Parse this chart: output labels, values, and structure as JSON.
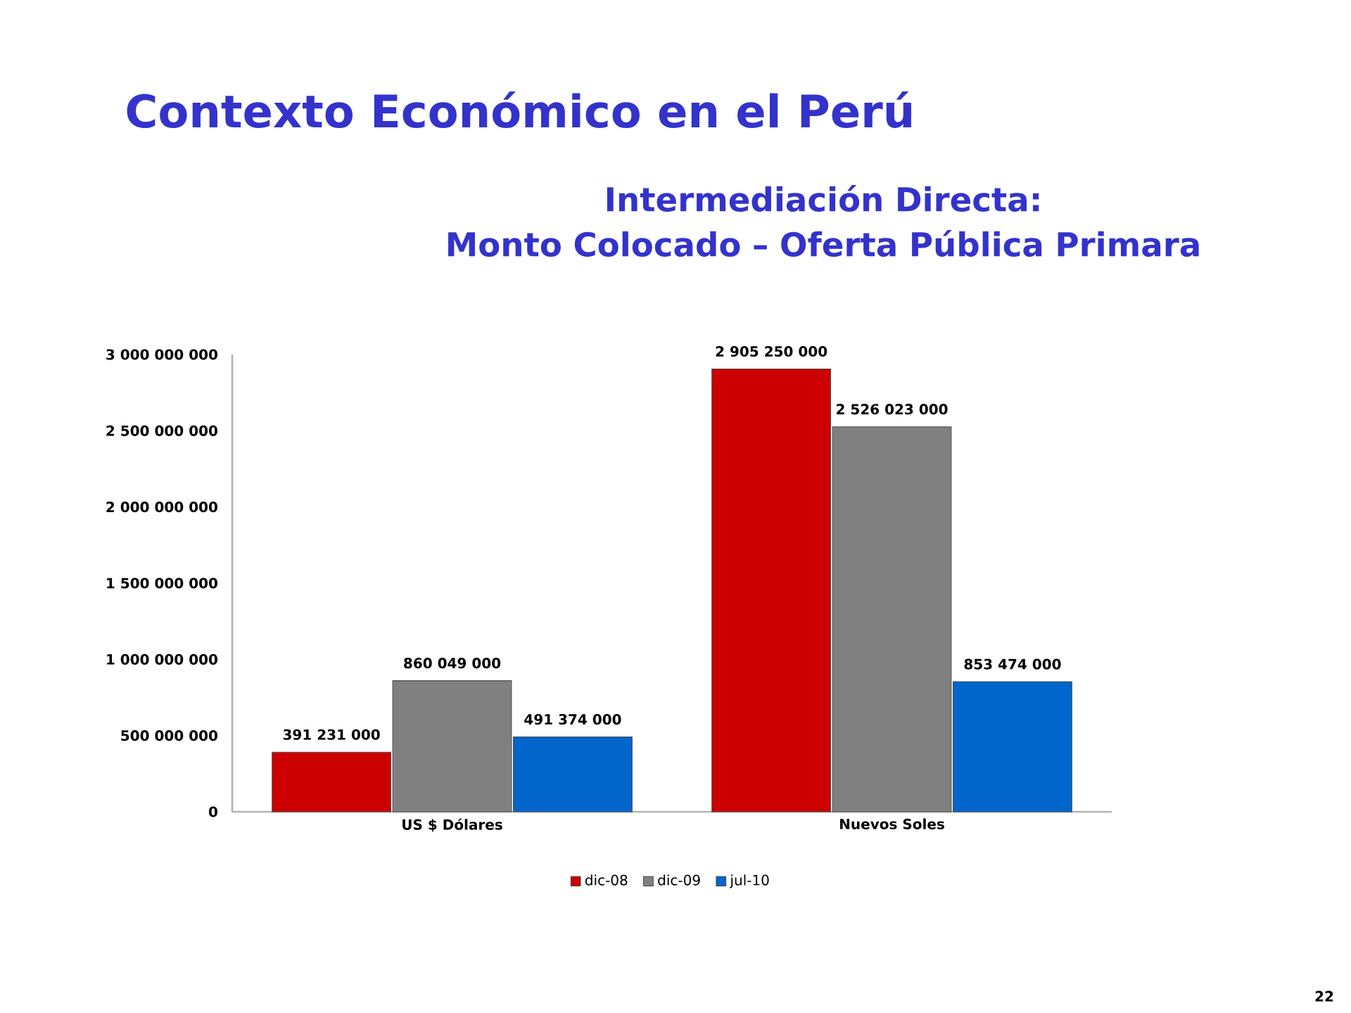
{
  "chart_data": {
    "type": "bar",
    "title": "Contexto Económico en el Perú",
    "subtitle": "Intermediación Directa: Monto Colocado – Oferta Pública Primara",
    "categories": [
      "US $ Dólares",
      "Nuevos Soles"
    ],
    "series": [
      {
        "name": "dic-08",
        "color": "#cc0000",
        "values": [
          391231000,
          2905250000
        ],
        "value_labels": [
          "391 231 000",
          "2 905 250 000"
        ]
      },
      {
        "name": "dic-09",
        "color": "#808080",
        "values": [
          860049000,
          2526023000
        ],
        "value_labels": [
          "860 049 000",
          "2 526 023 000"
        ]
      },
      {
        "name": "jul-10",
        "color": "#0066cc",
        "values": [
          491374000,
          853474000
        ],
        "value_labels": [
          "491 374 000",
          "853 474 000"
        ]
      }
    ],
    "ylim": [
      0,
      3000000000
    ],
    "yticks": [
      0,
      {
        "value": 500000000,
        "label": "500 000 000"
      },
      {
        "value": 1000000000,
        "label": "1 000 000 000"
      },
      {
        "value": 1500000000,
        "label": "1 500 000 000"
      },
      {
        "value": 2000000000,
        "label": "2 000 000 000"
      },
      {
        "value": 2500000000,
        "label": "2 500 000 000"
      },
      {
        "value": 3000000000,
        "label": "3 000 000 000"
      }
    ],
    "legend": "bottom",
    "annotations": [
      "22"
    ]
  }
}
